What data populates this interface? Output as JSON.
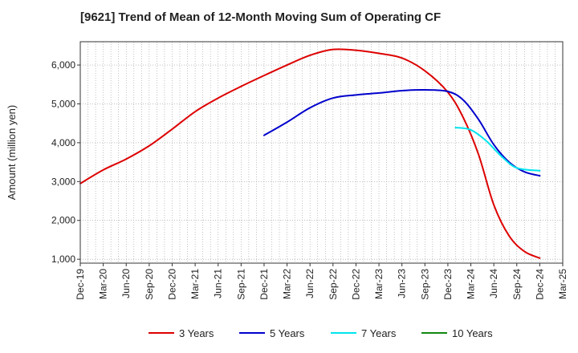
{
  "chart_data": {
    "type": "line",
    "title": "[9621]  Trend of Mean of 12-Month Moving Sum of Operating CF",
    "xlabel": "",
    "ylabel": "Amount (million yen)",
    "ylim": [
      900,
      6600
    ],
    "yticks": [
      1000,
      2000,
      3000,
      4000,
      5000,
      6000
    ],
    "ytick_labels": [
      "1,000",
      "2,000",
      "3,000",
      "4,000",
      "5,000",
      "6,000"
    ],
    "xtick_labels": [
      "Dec-19",
      "Mar-20",
      "Jun-20",
      "Sep-20",
      "Dec-20",
      "Mar-21",
      "Jun-21",
      "Sep-21",
      "Dec-21",
      "Mar-22",
      "Jun-22",
      "Sep-22",
      "Dec-22",
      "Mar-23",
      "Jun-23",
      "Sep-23",
      "Dec-23",
      "Mar-24",
      "Jun-24",
      "Sep-24",
      "Dec-24",
      "Mar-25"
    ],
    "x_range_months": [
      0,
      63
    ],
    "grid": true,
    "legend_position": "bottom",
    "series": [
      {
        "name": "3 Years",
        "color": "#dd0000",
        "x": [
          0,
          3,
          6,
          9,
          12,
          15,
          18,
          21,
          24,
          27,
          30,
          33,
          36,
          39,
          42,
          45,
          48,
          50,
          52,
          54,
          56,
          58,
          60
        ],
        "values": [
          2950,
          3300,
          3580,
          3920,
          4350,
          4800,
          5150,
          5450,
          5730,
          6000,
          6250,
          6400,
          6380,
          6300,
          6180,
          5850,
          5300,
          4650,
          3700,
          2400,
          1600,
          1200,
          1030
        ]
      },
      {
        "name": "5 Years",
        "color": "#0000cc",
        "x": [
          24,
          27,
          30,
          33,
          36,
          39,
          42,
          45,
          48,
          50,
          52,
          54,
          56,
          58,
          60
        ],
        "values": [
          4190,
          4530,
          4900,
          5150,
          5230,
          5280,
          5340,
          5360,
          5320,
          5100,
          4600,
          3950,
          3500,
          3250,
          3150
        ]
      },
      {
        "name": "7 Years",
        "color": "#00e5ee",
        "x": [
          49,
          51,
          53,
          55,
          57,
          60
        ],
        "values": [
          4390,
          4330,
          4050,
          3650,
          3350,
          3280
        ]
      },
      {
        "name": "10 Years",
        "color": "#118811",
        "x": [],
        "values": []
      }
    ]
  }
}
